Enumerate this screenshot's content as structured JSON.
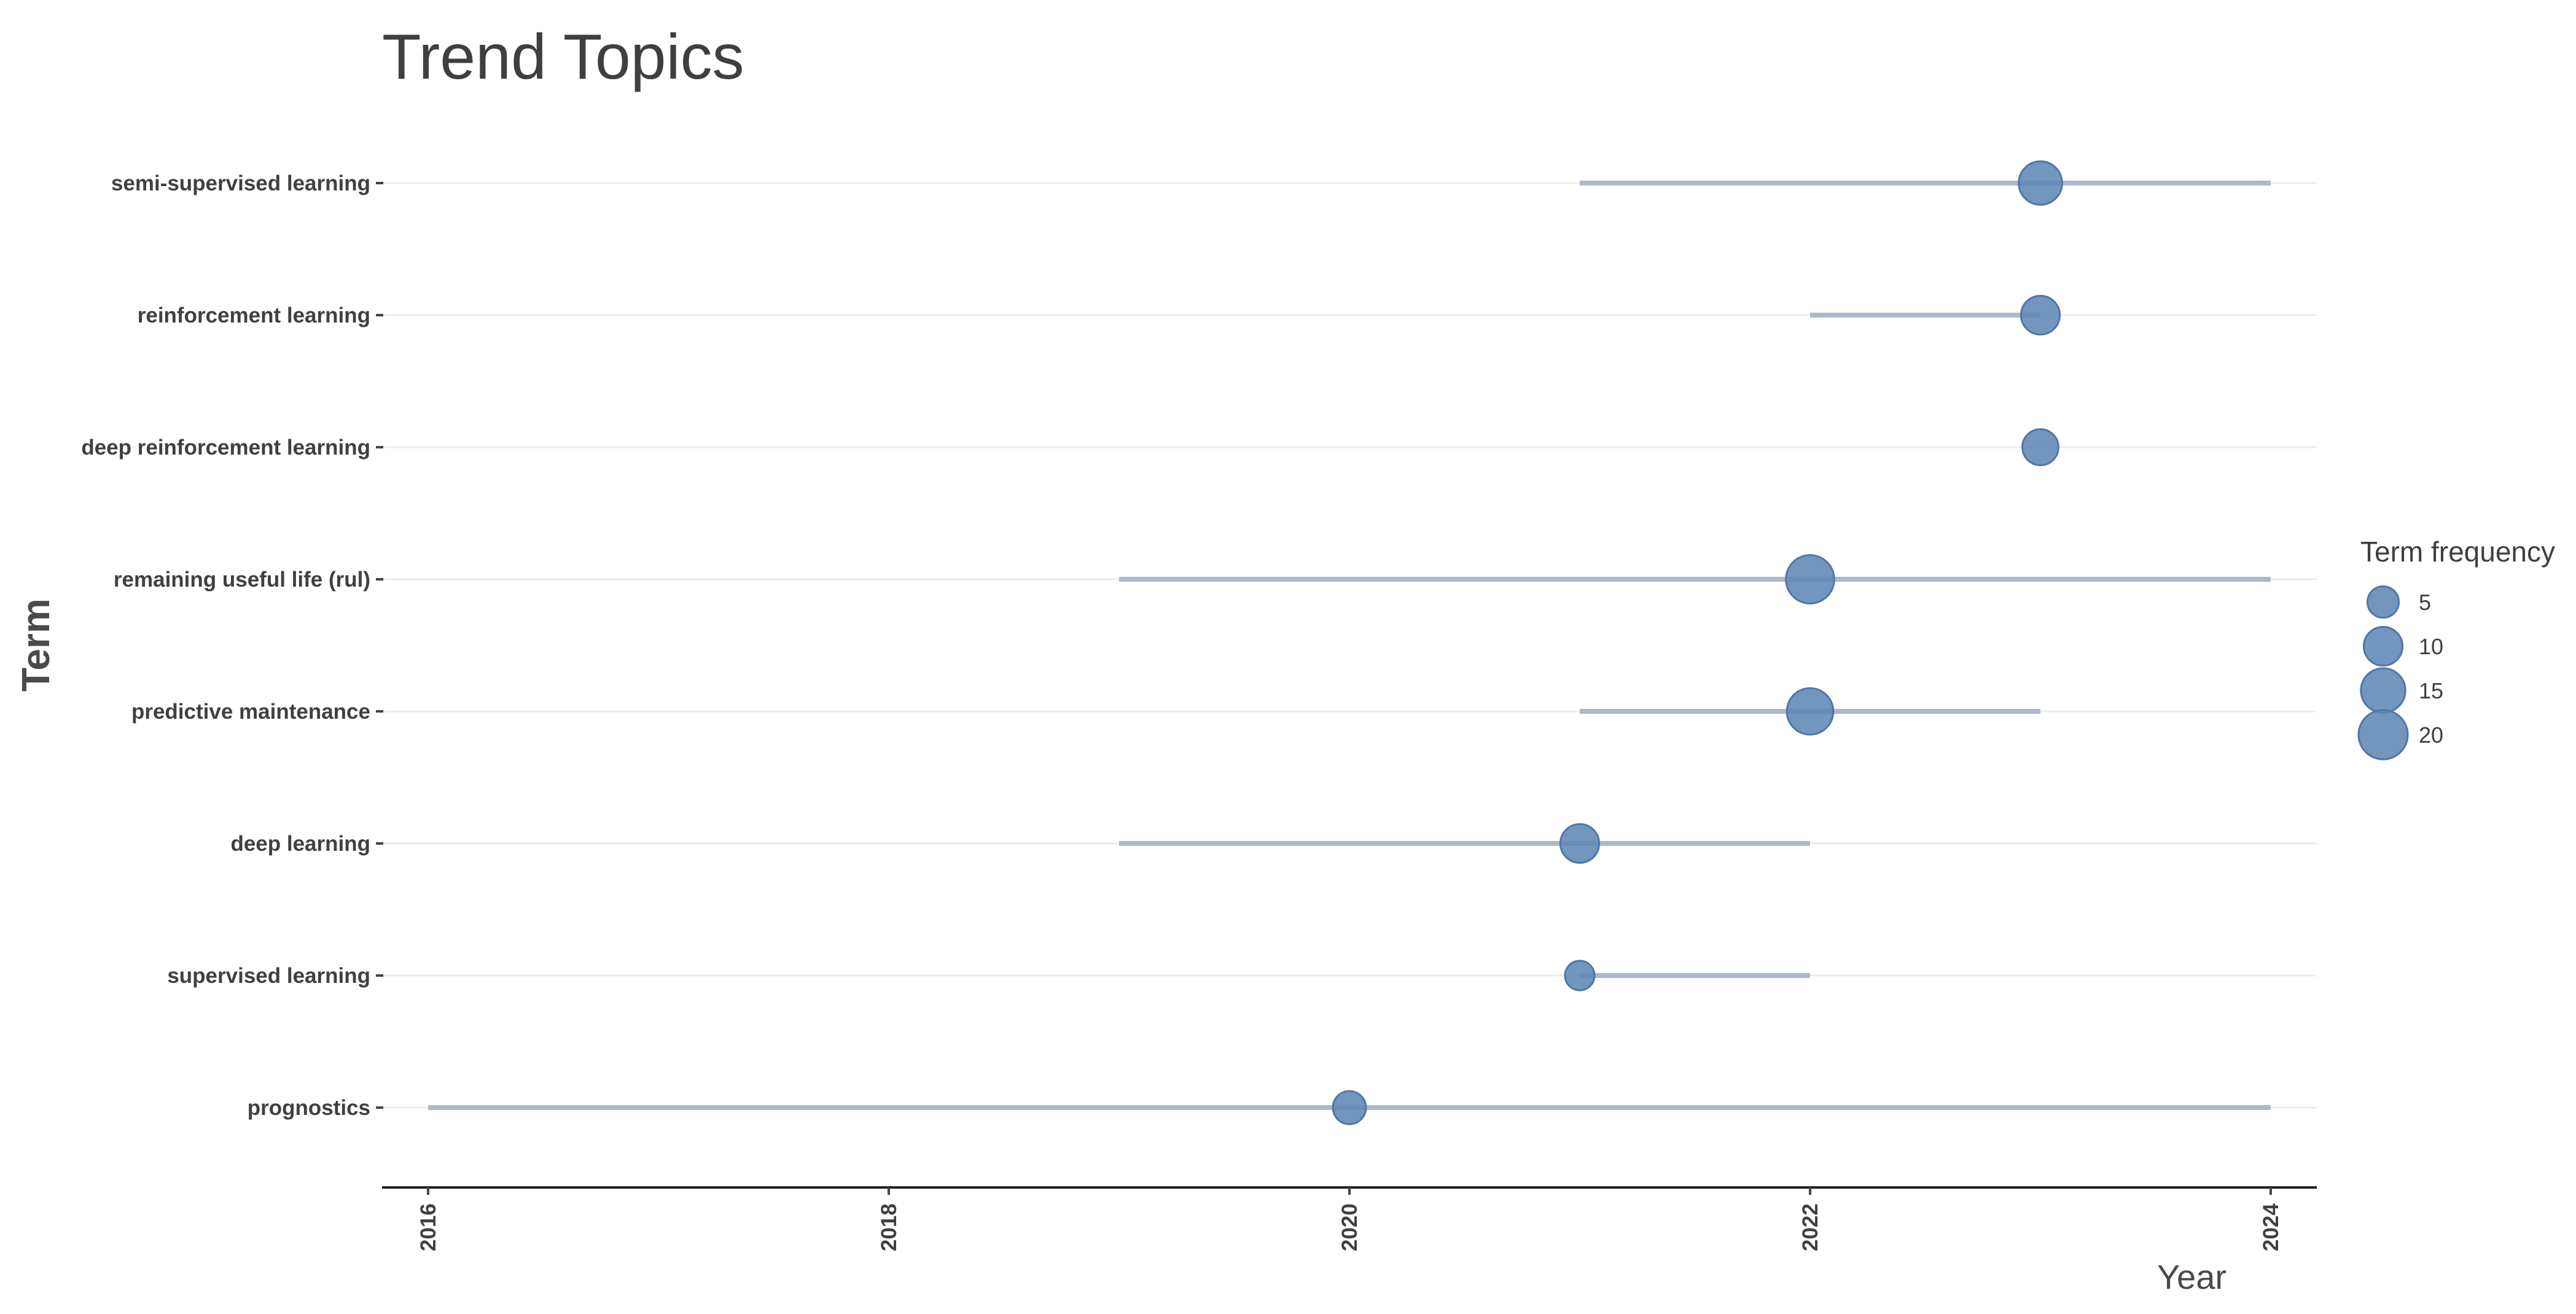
{
  "chart_data": {
    "type": "scatter",
    "title": "Trend Topics",
    "xlabel": "Year",
    "ylabel": "Term",
    "xlim": [
      2015.8,
      2024.2
    ],
    "xticks": [
      "2016",
      "2018",
      "2020",
      "2022",
      "2024"
    ],
    "grid": "horizontal",
    "legend_placement": "right",
    "legend": {
      "title": "Term frequency",
      "sizes": [
        5,
        10,
        15,
        20
      ],
      "labels": [
        "5",
        "10",
        "15",
        "20"
      ]
    },
    "colors": {
      "point": "#5f87b5",
      "range": "#aeb8cc",
      "grid": "#ececec"
    },
    "terms": [
      {
        "term": "semi-supervised learning",
        "q1": 2021,
        "median": 2023,
        "q3": 2024,
        "freq": 14
      },
      {
        "term": "reinforcement learning",
        "q1": 2022,
        "median": 2023,
        "q3": 2023,
        "freq": 10
      },
      {
        "term": "deep reinforcement learning",
        "q1": 2023,
        "median": 2023,
        "q3": 2023,
        "freq": 8
      },
      {
        "term": "remaining useful life (rul)",
        "q1": 2019,
        "median": 2022,
        "q3": 2024,
        "freq": 19
      },
      {
        "term": "predictive maintenance",
        "q1": 2021,
        "median": 2022,
        "q3": 2023,
        "freq": 17
      },
      {
        "term": "deep learning",
        "q1": 2019,
        "median": 2021,
        "q3": 2022,
        "freq": 10
      },
      {
        "term": "supervised learning",
        "q1": 2021,
        "median": 2021,
        "q3": 2022,
        "freq": 4
      },
      {
        "term": "prognostics",
        "q1": 2016,
        "median": 2020,
        "q3": 2024,
        "freq": 6
      }
    ]
  }
}
